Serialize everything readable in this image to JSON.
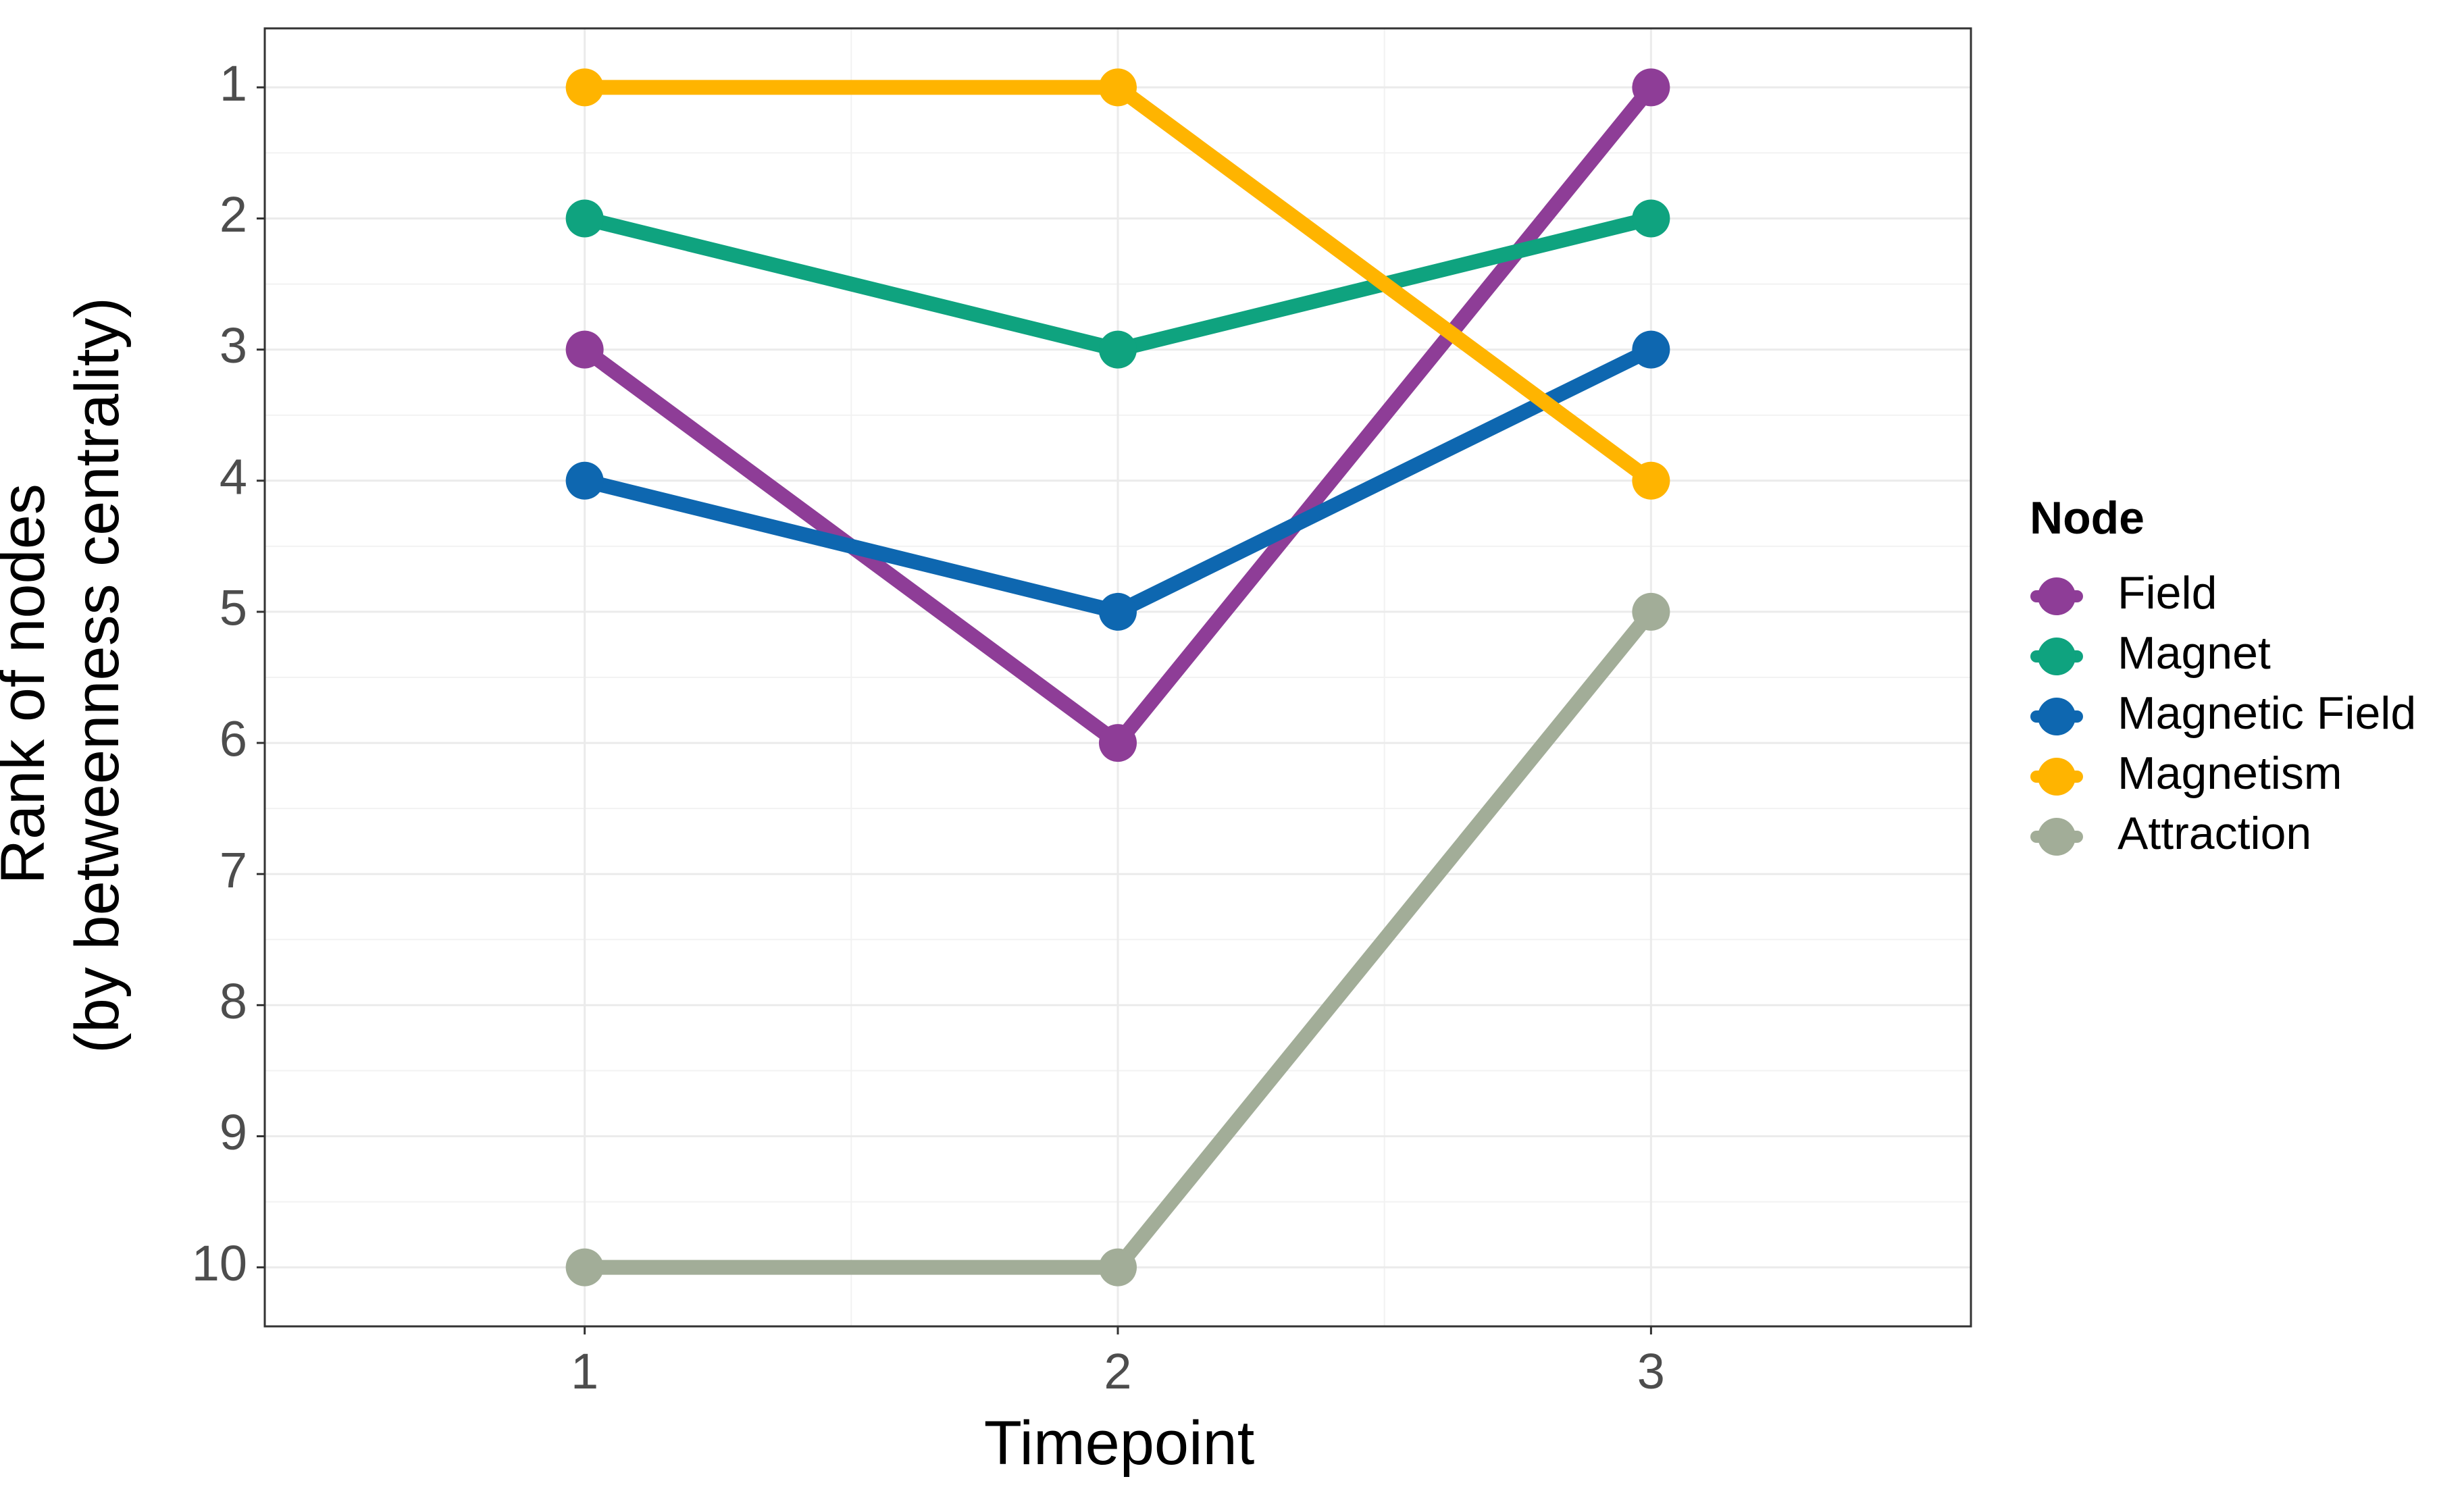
{
  "chart_data": {
    "type": "line",
    "title": "",
    "xlabel": "Timepoint",
    "ylabel": [
      "Rank of nodes",
      "(by betweenness centrality)"
    ],
    "x": [
      1,
      2,
      3
    ],
    "xlim": [
      0.4,
      3.6
    ],
    "ylim": [
      10.45,
      0.55
    ],
    "y_reversed": true,
    "x_ticks": [
      1,
      2,
      3
    ],
    "y_ticks": [
      1,
      2,
      3,
      4,
      5,
      6,
      7,
      8,
      9,
      10
    ],
    "grid": true,
    "legend": {
      "title": "Node",
      "placement": "right"
    },
    "series": [
      {
        "name": "Field",
        "color": "#8E3D97",
        "values": [
          3,
          6,
          1
        ]
      },
      {
        "name": "Magnet",
        "color": "#0FA37F",
        "values": [
          2,
          3,
          2
        ]
      },
      {
        "name": "Magnetic Field",
        "color": "#0E67B0",
        "values": [
          4,
          5,
          3
        ]
      },
      {
        "name": "Magnetism",
        "color": "#FFB400",
        "values": [
          1,
          1,
          4
        ]
      },
      {
        "name": "Attraction",
        "color": "#A2AD98",
        "values": [
          10,
          10,
          5
        ]
      }
    ]
  }
}
